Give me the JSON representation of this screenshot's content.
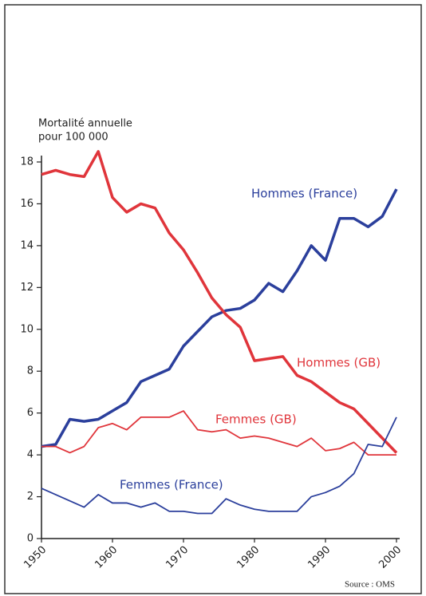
{
  "chart_data": {
    "type": "line",
    "ylabel": [
      "Mortalité annuelle",
      "pour 100 000"
    ],
    "source": "Source : OMS",
    "x": [
      1950,
      1952,
      1954,
      1956,
      1958,
      1960,
      1962,
      1964,
      1966,
      1968,
      1970,
      1972,
      1974,
      1976,
      1978,
      1980,
      1982,
      1984,
      1986,
      1988,
      1990,
      1992,
      1994,
      1996,
      1998,
      2000
    ],
    "series": [
      {
        "name": "Hommes (France)",
        "color": "#2b3f9c",
        "width": 3.5,
        "values": [
          4.4,
          4.5,
          5.7,
          5.6,
          5.7,
          6.1,
          6.5,
          7.5,
          7.8,
          8.1,
          9.2,
          9.9,
          10.6,
          10.9,
          11.0,
          11.4,
          12.2,
          11.8,
          12.8,
          14.0,
          13.3,
          15.3,
          15.3,
          14.9,
          15.4,
          16.7
        ]
      },
      {
        "name": "Hommes (GB)",
        "color": "#e0353b",
        "width": 3.5,
        "values": [
          17.4,
          17.6,
          17.4,
          17.3,
          18.5,
          16.3,
          15.6,
          16.0,
          15.8,
          14.6,
          13.8,
          12.7,
          11.5,
          10.7,
          10.1,
          8.5,
          8.6,
          8.7,
          7.8,
          7.5,
          7.0,
          6.5,
          6.2,
          5.5,
          4.8,
          4.1
        ]
      },
      {
        "name": "Femmes (GB)",
        "color": "#e0353b",
        "width": 1.8,
        "values": [
          4.4,
          4.4,
          4.1,
          4.4,
          5.3,
          5.5,
          5.2,
          5.8,
          5.8,
          5.8,
          6.1,
          5.2,
          5.1,
          5.2,
          4.8,
          4.9,
          4.8,
          4.6,
          4.4,
          4.8,
          4.2,
          4.3,
          4.6,
          4.0,
          4.0,
          4.0
        ]
      },
      {
        "name": "Femmes (France)",
        "color": "#2b3f9c",
        "width": 1.8,
        "values": [
          2.4,
          2.1,
          1.8,
          1.5,
          2.1,
          1.7,
          1.7,
          1.5,
          1.7,
          1.3,
          1.3,
          1.2,
          1.2,
          1.9,
          1.6,
          1.4,
          1.3,
          1.3,
          1.3,
          2.0,
          2.2,
          2.5,
          3.1,
          4.5,
          4.4,
          5.8
        ]
      }
    ],
    "xlim": [
      1950,
      2000
    ],
    "xticks": [
      1950,
      1960,
      1970,
      1980,
      1990,
      2000
    ],
    "ylim": [
      0,
      18
    ],
    "yticks": [
      0,
      2,
      4,
      6,
      8,
      10,
      12,
      14,
      16,
      18
    ]
  }
}
